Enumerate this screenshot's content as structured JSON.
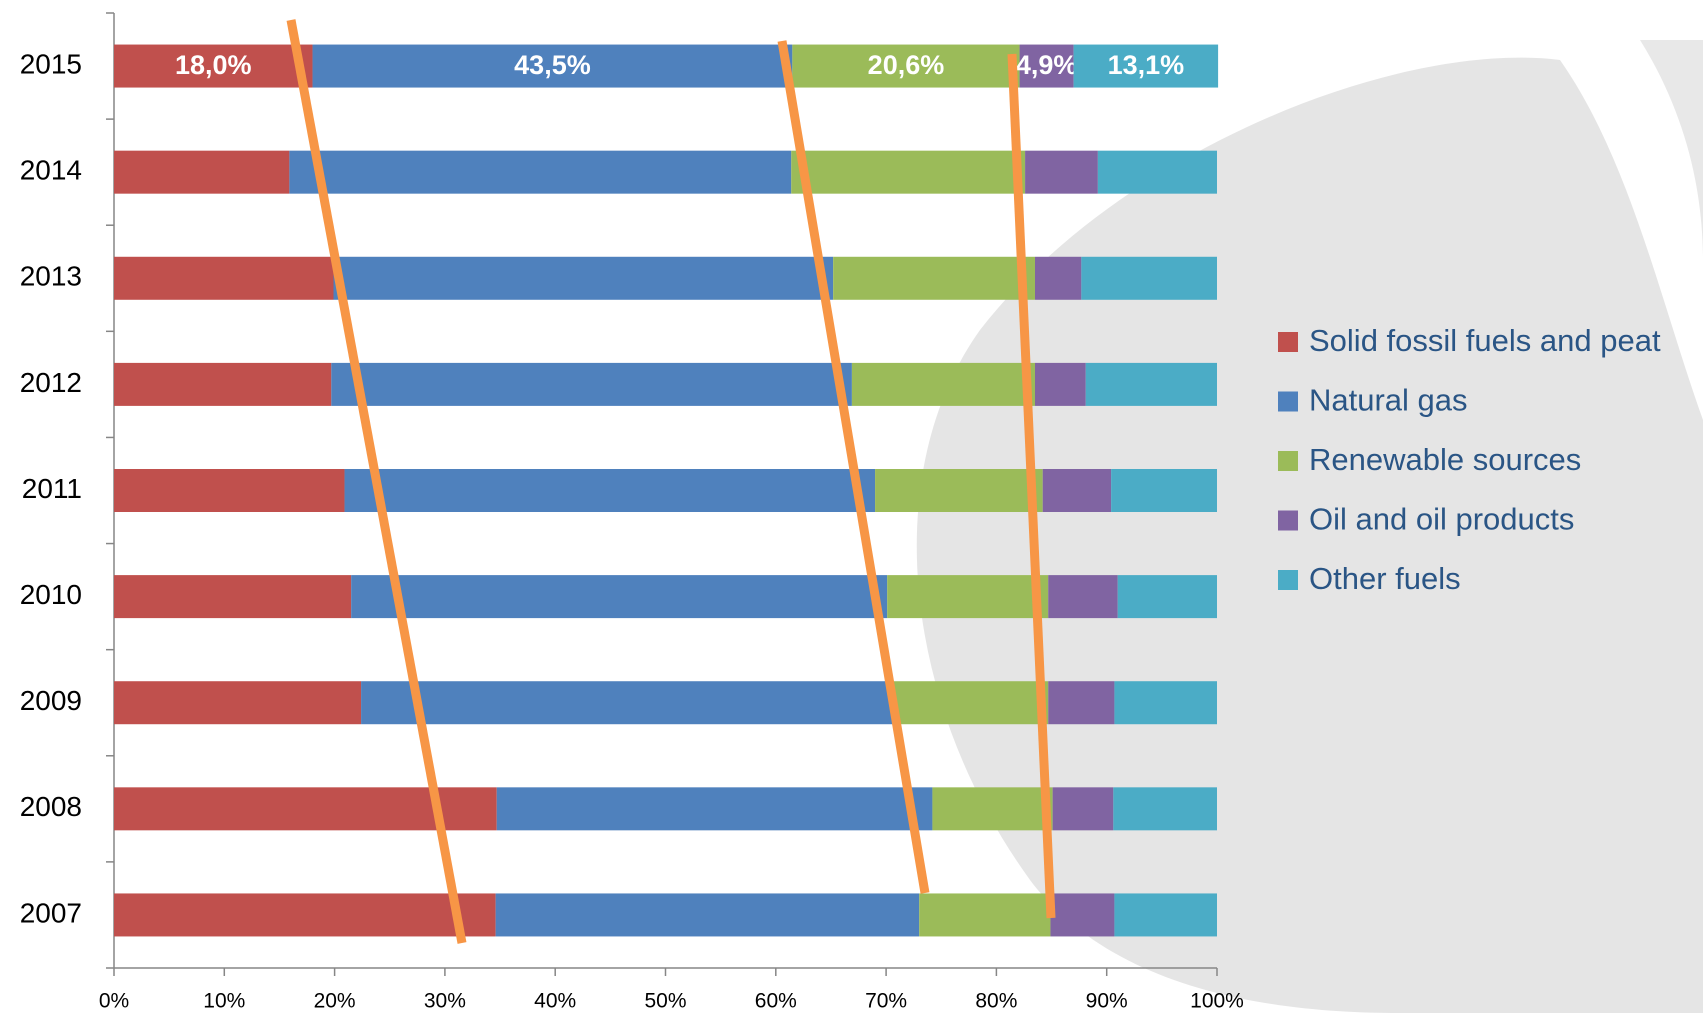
{
  "chart_data": {
    "type": "stacked_bar_horizontal",
    "categories": [
      "2015",
      "2014",
      "2013",
      "2012",
      "2011",
      "2010",
      "2009",
      "2008",
      "2007"
    ],
    "series": [
      {
        "name": "Solid fossil fuels and peat",
        "color": "#c0504d",
        "values": [
          18.0,
          15.9,
          19.9,
          19.7,
          20.9,
          21.5,
          22.4,
          34.7,
          34.6
        ],
        "value_labels": [
          "18,0%",
          null,
          null,
          null,
          null,
          null,
          null,
          null,
          null
        ]
      },
      {
        "name": "Natural gas",
        "color": "#4f81bd",
        "values": [
          43.5,
          45.5,
          45.3,
          47.2,
          48.1,
          48.6,
          48.3,
          39.5,
          38.4
        ],
        "value_labels": [
          "43,5%",
          null,
          null,
          null,
          null,
          null,
          null,
          null,
          null
        ]
      },
      {
        "name": "Renewable sources",
        "color": "#9bbb59",
        "values": [
          20.6,
          21.2,
          18.3,
          16.6,
          15.2,
          14.6,
          14.0,
          10.9,
          11.9
        ],
        "value_labels": [
          "20,6%",
          null,
          null,
          null,
          null,
          null,
          null,
          null,
          null
        ]
      },
      {
        "name": "Oil and oil products",
        "color": "#8064a2",
        "values": [
          4.9,
          6.6,
          4.2,
          4.6,
          6.2,
          6.3,
          6.0,
          5.5,
          5.8
        ],
        "value_labels": [
          "4,9%",
          null,
          null,
          null,
          null,
          null,
          null,
          null,
          null
        ]
      },
      {
        "name": "Other fuels",
        "color": "#4bacc6",
        "values": [
          13.1,
          10.8,
          12.3,
          11.9,
          9.6,
          9.0,
          9.3,
          9.4,
          9.3
        ],
        "value_labels": [
          "13,1%",
          null,
          null,
          null,
          null,
          null,
          null,
          null,
          null
        ]
      }
    ],
    "xlim": [
      0,
      100
    ],
    "xticks": [
      {
        "value": 0,
        "label": "0%"
      },
      {
        "value": 10,
        "label": "10%"
      },
      {
        "value": 20,
        "label": "20%"
      },
      {
        "value": 30,
        "label": "30%"
      },
      {
        "value": 40,
        "label": "40%"
      },
      {
        "value": 50,
        "label": "50%"
      },
      {
        "value": 60,
        "label": "60%"
      },
      {
        "value": 70,
        "label": "70%"
      },
      {
        "value": 80,
        "label": "80%"
      },
      {
        "value": 90,
        "label": "90%"
      },
      {
        "value": 100,
        "label": "100%"
      }
    ],
    "legend": "right"
  }
}
